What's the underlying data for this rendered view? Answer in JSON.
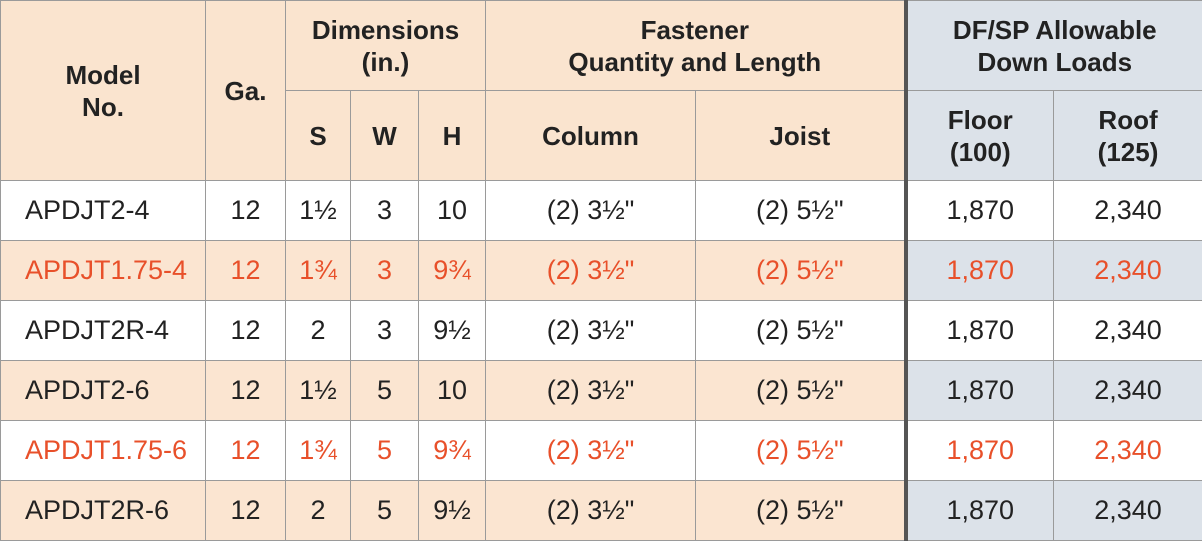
{
  "header": {
    "model": "Model\nNo.",
    "ga": "Ga.",
    "dimensions": "Dimensions\n(in.)",
    "s": "S",
    "w": "W",
    "h": "H",
    "fastener": "Fastener\nQuantity and Length",
    "column": "Column",
    "joist": "Joist",
    "loads": "DF/SP Allowable\nDown Loads",
    "floor": "Floor\n(100)",
    "roof": "Roof\n(125)"
  },
  "rows": [
    {
      "cells": [
        "APDJT2-4",
        "12",
        "1½",
        "3",
        "10",
        "(2) 3½\"",
        "(2) 5½\"",
        "1,870",
        "2,340"
      ],
      "text_color": "#222222"
    },
    {
      "cells": [
        "APDJT1.75-4",
        "12",
        "1¾",
        "3",
        "9¾",
        "(2) 3½\"",
        "(2) 5½\"",
        "1,870",
        "2,340"
      ],
      "text_color": "#e8502a"
    },
    {
      "cells": [
        "APDJT2R-4",
        "12",
        "2",
        "3",
        "9½",
        "(2) 3½\"",
        "(2) 5½\"",
        "1,870",
        "2,340"
      ],
      "text_color": "#222222"
    },
    {
      "cells": [
        "APDJT2-6",
        "12",
        "1½",
        "5",
        "10",
        "(2) 3½\"",
        "(2) 5½\"",
        "1,870",
        "2,340"
      ],
      "text_color": "#222222"
    },
    {
      "cells": [
        "APDJT1.75-6",
        "12",
        "1¾",
        "5",
        "9¾",
        "(2) 3½\"",
        "(2) 5½\"",
        "1,870",
        "2,340"
      ],
      "text_color": "#e8502a"
    },
    {
      "cells": [
        "APDJT2R-6",
        "12",
        "2",
        "5",
        "9½",
        "(2) 3½\"",
        "(2) 5½\"",
        "1,870",
        "2,340"
      ],
      "text_color": "#222222"
    }
  ]
}
